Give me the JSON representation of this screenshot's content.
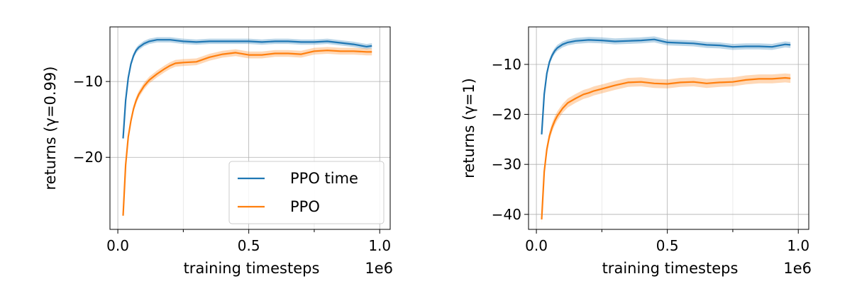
{
  "chart_data": [
    {
      "type": "line",
      "xlabel": "training timesteps",
      "ylabel": "returns (γ=0.99)",
      "x_offset_label": "1e6",
      "xlim": [
        -0.03,
        1.04
      ],
      "ylim": [
        -29.5,
        -2.8
      ],
      "xticks": [
        0.0,
        0.5,
        1.0
      ],
      "xtick_labels": [
        "0.0",
        "0.5",
        "1.0"
      ],
      "yticks": [
        -10,
        -20
      ],
      "ytick_labels": [
        "−10",
        "−20"
      ],
      "grid": true,
      "legend": {
        "placement": "lower-right",
        "entries": [
          "PPO time",
          "PPO"
        ]
      },
      "series": [
        {
          "name": "PPO time",
          "color": "#1f77b4",
          "band": 0.35,
          "x": [
            0.02,
            0.03,
            0.04,
            0.05,
            0.06,
            0.07,
            0.08,
            0.1,
            0.12,
            0.15,
            0.2,
            0.25,
            0.3,
            0.35,
            0.4,
            0.45,
            0.5,
            0.55,
            0.6,
            0.65,
            0.7,
            0.75,
            0.8,
            0.85,
            0.9,
            0.95,
            0.97
          ],
          "y": [
            -17.5,
            -12.5,
            -9.5,
            -7.7,
            -6.6,
            -5.9,
            -5.5,
            -5.0,
            -4.7,
            -4.5,
            -4.5,
            -4.7,
            -4.8,
            -4.7,
            -4.7,
            -4.7,
            -4.7,
            -4.8,
            -4.7,
            -4.7,
            -4.8,
            -4.8,
            -4.7,
            -4.9,
            -5.1,
            -5.4,
            -5.3
          ]
        },
        {
          "name": "PPO",
          "color": "#ff7f0e",
          "band": 0.45,
          "x": [
            0.02,
            0.03,
            0.04,
            0.05,
            0.06,
            0.07,
            0.08,
            0.1,
            0.12,
            0.15,
            0.18,
            0.2,
            0.22,
            0.25,
            0.3,
            0.35,
            0.4,
            0.45,
            0.5,
            0.55,
            0.6,
            0.65,
            0.7,
            0.75,
            0.8,
            0.85,
            0.9,
            0.95,
            0.97
          ],
          "y": [
            -27.7,
            -21.0,
            -17.3,
            -15.2,
            -13.6,
            -12.5,
            -11.7,
            -10.6,
            -9.8,
            -9.0,
            -8.3,
            -7.9,
            -7.6,
            -7.5,
            -7.4,
            -6.8,
            -6.4,
            -6.2,
            -6.5,
            -6.5,
            -6.3,
            -6.3,
            -6.4,
            -6.0,
            -5.9,
            -6.0,
            -6.0,
            -6.1,
            -6.1
          ]
        }
      ]
    },
    {
      "type": "line",
      "xlabel": "training timesteps",
      "ylabel": "returns (γ=1)",
      "x_offset_label": "1e6",
      "xlim": [
        -0.03,
        1.04
      ],
      "ylim": [
        -43.0,
        -2.5
      ],
      "xticks": [
        0.0,
        0.5,
        1.0
      ],
      "xtick_labels": [
        "0.0",
        "0.5",
        "1.0"
      ],
      "yticks": [
        -10,
        -20,
        -30,
        -40
      ],
      "ytick_labels": [
        "−10",
        "−20",
        "−30",
        "−40"
      ],
      "grid": true,
      "series": [
        {
          "name": "PPO time",
          "color": "#1f77b4",
          "band": 0.6,
          "x": [
            0.02,
            0.03,
            0.04,
            0.05,
            0.06,
            0.07,
            0.08,
            0.1,
            0.12,
            0.15,
            0.2,
            0.25,
            0.3,
            0.35,
            0.4,
            0.45,
            0.5,
            0.55,
            0.6,
            0.65,
            0.7,
            0.75,
            0.8,
            0.85,
            0.9,
            0.95,
            0.97
          ],
          "y": [
            -24.0,
            -16.0,
            -11.8,
            -9.5,
            -8.2,
            -7.3,
            -6.7,
            -6.0,
            -5.6,
            -5.3,
            -5.1,
            -5.2,
            -5.4,
            -5.3,
            -5.2,
            -5.0,
            -5.6,
            -5.7,
            -5.8,
            -6.1,
            -6.2,
            -6.5,
            -6.4,
            -6.4,
            -6.5,
            -6.0,
            -6.1
          ]
        },
        {
          "name": "PPO",
          "color": "#ff7f0e",
          "band": 0.9,
          "x": [
            0.02,
            0.03,
            0.04,
            0.05,
            0.06,
            0.07,
            0.08,
            0.1,
            0.12,
            0.15,
            0.18,
            0.2,
            0.22,
            0.25,
            0.3,
            0.35,
            0.4,
            0.45,
            0.5,
            0.55,
            0.6,
            0.65,
            0.7,
            0.75,
            0.8,
            0.85,
            0.9,
            0.95,
            0.97
          ],
          "y": [
            -41.0,
            -31.5,
            -27.0,
            -24.3,
            -22.6,
            -21.3,
            -20.3,
            -18.8,
            -17.7,
            -16.8,
            -16.0,
            -15.7,
            -15.3,
            -14.9,
            -14.2,
            -13.6,
            -13.5,
            -13.8,
            -13.9,
            -13.6,
            -13.5,
            -13.8,
            -13.6,
            -13.5,
            -13.1,
            -12.9,
            -12.9,
            -12.7,
            -12.8
          ]
        }
      ]
    }
  ]
}
